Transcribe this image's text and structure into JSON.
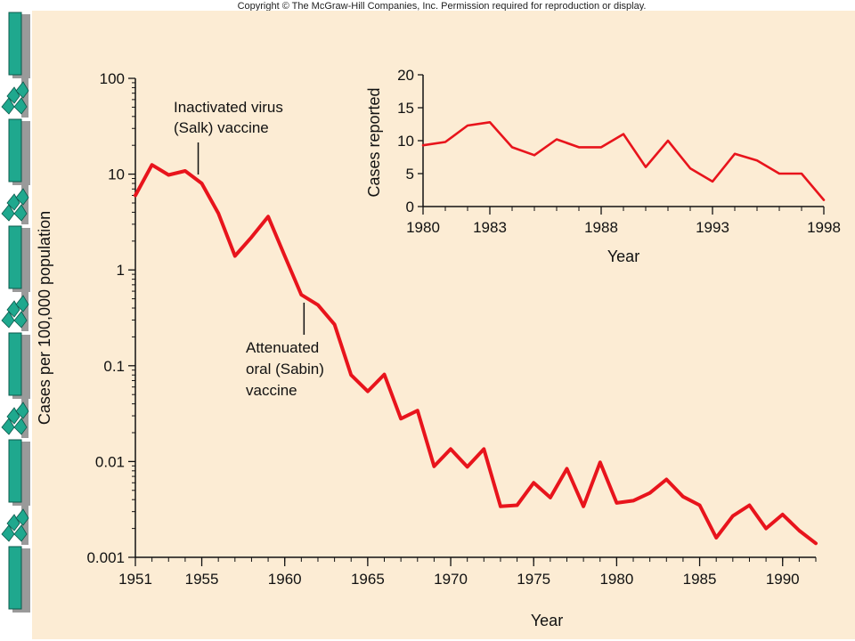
{
  "copyright": "Copyright © The McGraw-Hill Companies, Inc. Permission required for reproduction or display.",
  "colors": {
    "line": "#e8141c",
    "panel": "#fcecd4",
    "sidebar_teal": "#1fa88e",
    "sidebar_gray": "#9a9a9a"
  },
  "chart_data": [
    {
      "type": "line",
      "scale": "log",
      "title": "",
      "xlabel": "Year",
      "ylabel": "Cases per 100,000 population",
      "xlim": [
        1951,
        1992
      ],
      "ylim": [
        0.001,
        100
      ],
      "x_ticks": [
        "1951",
        "1955",
        "1960",
        "1965",
        "1970",
        "1975",
        "1980",
        "1985",
        "1990"
      ],
      "y_ticks": [
        "0.001",
        "0.01",
        "0.1",
        "1",
        "10",
        "100"
      ],
      "annotations": [
        {
          "lines": [
            "Inactivated virus",
            "(Salk) vaccine"
          ],
          "year": 1955
        },
        {
          "lines": [
            "Attenuated",
            "oral (Sabin)",
            "vaccine"
          ],
          "year": 1961
        }
      ],
      "series": [
        {
          "x": [
            1951,
            1952,
            1953,
            1954,
            1955,
            1956,
            1957,
            1958,
            1959,
            1960,
            1961,
            1962,
            1963,
            1964,
            1965,
            1966,
            1967,
            1968,
            1969,
            1970,
            1971,
            1972,
            1973,
            1974,
            1975,
            1976,
            1977,
            1978,
            1979,
            1980,
            1981,
            1982,
            1983,
            1984,
            1985,
            1986,
            1987,
            1988,
            1989,
            1990,
            1991,
            1992
          ],
          "y": [
            6.0,
            12.5,
            9.8,
            10.8,
            8.0,
            3.9,
            1.4,
            2.2,
            3.6,
            1.4,
            0.55,
            0.43,
            0.27,
            0.08,
            0.054,
            0.081,
            0.028,
            0.034,
            0.0089,
            0.0135,
            0.0088,
            0.0135,
            0.0034,
            0.0035,
            0.006,
            0.0042,
            0.0084,
            0.0034,
            0.0098,
            0.0037,
            0.0039,
            0.0047,
            0.0065,
            0.0043,
            0.0035,
            0.0016,
            0.0027,
            0.0035,
            0.002,
            0.0028,
            0.0019,
            0.0014
          ]
        }
      ]
    },
    {
      "type": "line",
      "title": "",
      "xlabel": "Year",
      "ylabel": "Cases reported",
      "xlim": [
        1980,
        1998
      ],
      "ylim": [
        0,
        20
      ],
      "x_ticks": [
        "1980",
        "1983",
        "1988",
        "1993",
        "1998"
      ],
      "y_ticks": [
        "0",
        "5",
        "10",
        "15",
        "20"
      ],
      "series": [
        {
          "x": [
            1980,
            1981,
            1982,
            1983,
            1984,
            1985,
            1986,
            1987,
            1988,
            1989,
            1990,
            1991,
            1992,
            1993,
            1994,
            1995,
            1996,
            1997,
            1998
          ],
          "y": [
            9.3,
            9.8,
            12.3,
            12.8,
            9.0,
            7.8,
            10.2,
            9.0,
            9.0,
            11.0,
            6.0,
            10.0,
            5.8,
            3.8,
            8.0,
            7.0,
            5.0,
            5.0,
            1.0
          ]
        }
      ]
    }
  ]
}
